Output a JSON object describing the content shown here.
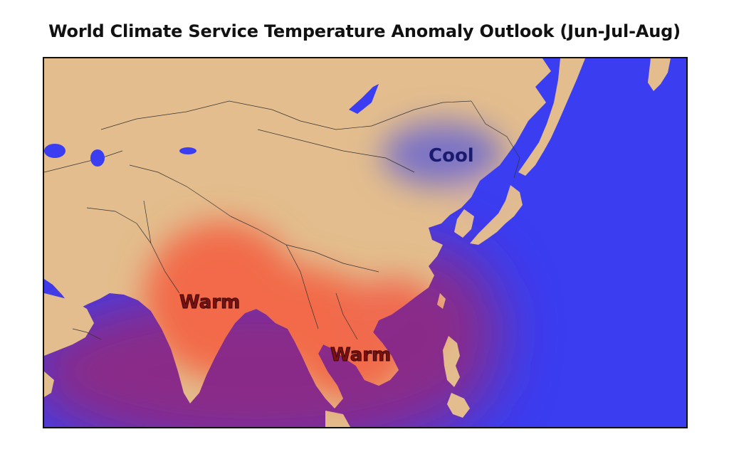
{
  "title": "World Climate Service Temperature Anomaly Outlook (Jun-Jul-Aug)",
  "map": {
    "region": "East and South Asia",
    "colors": {
      "ocean": "#3a3df0",
      "land": "#e3bd8d",
      "warm_anomaly": "#f26a4a",
      "cool_anomaly": "#7a72c6",
      "borders": "#333333"
    },
    "anomalies": [
      {
        "id": "cool-northeast-china",
        "label": "Cool",
        "type": "cool"
      },
      {
        "id": "warm-india",
        "label": "Warm",
        "type": "warm"
      },
      {
        "id": "warm-southeast-asia",
        "label": "Warm",
        "type": "warm"
      }
    ]
  }
}
